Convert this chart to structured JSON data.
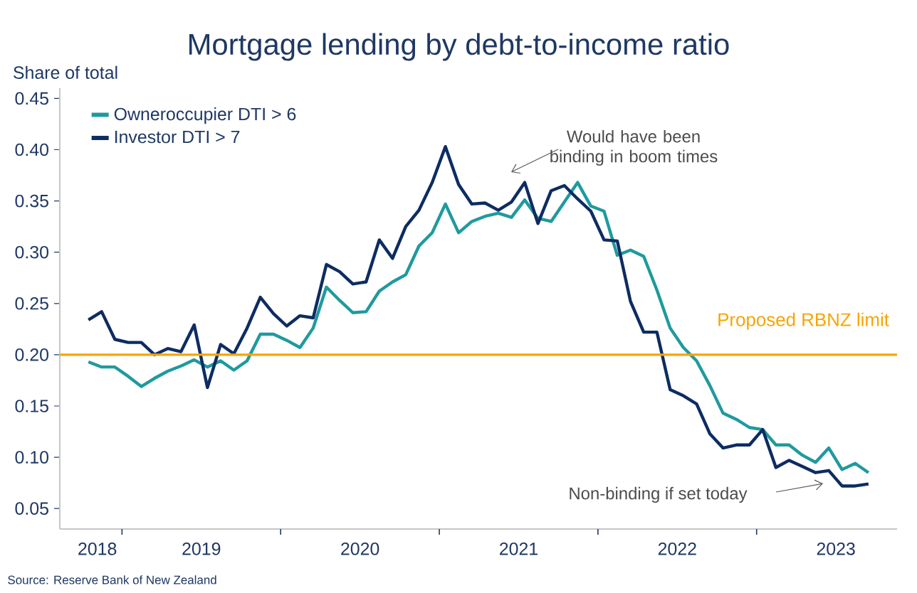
{
  "chart_data": {
    "type": "line",
    "title": "Mortgage lending by debt-to-income ratio",
    "ylabel": "Share of total",
    "x": [
      "2018-10-15",
      "2018-11-15",
      "2018-12-15",
      "2019-01-15",
      "2019-02-15",
      "2019-03-15",
      "2019-04-15",
      "2019-05-15",
      "2019-06-15",
      "2019-07-15",
      "2019-08-15",
      "2019-09-15",
      "2019-10-15",
      "2019-11-15",
      "2019-12-15",
      "2020-01-15",
      "2020-02-15",
      "2020-03-15",
      "2020-04-15",
      "2020-05-15",
      "2020-06-15",
      "2020-07-15",
      "2020-08-15",
      "2020-09-15",
      "2020-10-15",
      "2020-11-15",
      "2020-12-15",
      "2021-01-15",
      "2021-02-15",
      "2021-03-15",
      "2021-04-15",
      "2021-05-15",
      "2021-06-15",
      "2021-07-15",
      "2021-08-15",
      "2021-09-15",
      "2021-10-15",
      "2021-11-15",
      "2021-12-15",
      "2022-01-15",
      "2022-02-15",
      "2022-03-15",
      "2022-04-15",
      "2022-05-15",
      "2022-06-15",
      "2022-07-15",
      "2022-08-15",
      "2022-09-15",
      "2022-10-15",
      "2022-11-15",
      "2022-12-15",
      "2023-01-15",
      "2023-02-15",
      "2023-03-15",
      "2023-04-15",
      "2023-05-15",
      "2023-06-15",
      "2023-07-15",
      "2023-08-15",
      "2023-09-15"
    ],
    "series": [
      {
        "name": "Owneroccupier DTI > 6",
        "color": "#1f9a9e",
        "values": [
          0.193,
          0.188,
          0.188,
          0.179,
          0.169,
          0.177,
          0.184,
          0.189,
          0.195,
          0.188,
          0.194,
          0.185,
          0.194,
          0.22,
          0.22,
          0.214,
          0.207,
          0.226,
          0.266,
          0.253,
          0.241,
          0.242,
          0.262,
          0.271,
          0.278,
          0.306,
          0.319,
          0.347,
          0.319,
          0.33,
          0.335,
          0.338,
          0.334,
          0.351,
          0.333,
          0.33,
          0.349,
          0.368,
          0.345,
          0.34,
          0.297,
          0.302,
          0.296,
          0.263,
          0.226,
          0.207,
          0.194,
          0.17,
          0.143,
          0.137,
          0.129,
          0.127,
          0.112,
          0.112,
          0.102,
          0.095,
          0.109,
          0.088,
          0.094,
          0.085
        ]
      },
      {
        "name": "Investor DTI > 7",
        "color": "#0d2c62",
        "values": [
          0.234,
          0.242,
          0.215,
          0.212,
          0.212,
          0.2,
          0.206,
          0.203,
          0.229,
          0.168,
          0.21,
          0.201,
          0.226,
          0.256,
          0.24,
          0.228,
          0.238,
          0.236,
          0.288,
          0.281,
          0.269,
          0.271,
          0.312,
          0.294,
          0.325,
          0.341,
          0.368,
          0.403,
          0.366,
          0.347,
          0.348,
          0.341,
          0.349,
          0.368,
          0.328,
          0.36,
          0.365,
          0.352,
          0.34,
          0.312,
          0.311,
          0.252,
          0.222,
          0.222,
          0.166,
          0.16,
          0.152,
          0.123,
          0.109,
          0.112,
          0.112,
          0.127,
          0.09,
          0.097,
          0.091,
          0.085,
          0.087,
          0.072,
          0.072,
          0.074
        ]
      }
    ],
    "xlim": [
      "2018-08-10",
      "2023-11-20"
    ],
    "xticks": [
      {
        "value": "2018-11-05",
        "label": "2018"
      },
      {
        "value": "2019-01-01",
        "label": null
      },
      {
        "value": "2019-07-01",
        "label": "2019"
      },
      {
        "value": "2020-01-01",
        "label": null
      },
      {
        "value": "2020-07-01",
        "label": "2020"
      },
      {
        "value": "2021-01-01",
        "label": null
      },
      {
        "value": "2021-07-01",
        "label": "2021"
      },
      {
        "value": "2022-01-01",
        "label": null
      },
      {
        "value": "2022-07-01",
        "label": "2022"
      },
      {
        "value": "2023-01-01",
        "label": null
      },
      {
        "value": "2023-07-01",
        "label": "2023"
      }
    ],
    "ylim": [
      0.03,
      0.46
    ],
    "yticks": [
      {
        "value": 0.05,
        "label": "0.05"
      },
      {
        "value": 0.1,
        "label": "0.10"
      },
      {
        "value": 0.15,
        "label": "0.15"
      },
      {
        "value": 0.2,
        "label": "0.20"
      },
      {
        "value": 0.25,
        "label": "0.25"
      },
      {
        "value": 0.3,
        "label": "0.30"
      },
      {
        "value": 0.35,
        "label": "0.35"
      },
      {
        "value": 0.4,
        "label": "0.40"
      },
      {
        "value": 0.45,
        "label": "0.45"
      }
    ],
    "ref_lines": [
      {
        "axis": "y",
        "value": 0.2,
        "label": "Proposed RBNZ limit",
        "color": "#f7a400"
      }
    ],
    "annotations": [
      "Would have been binding in boom times",
      "Non-binding if set today",
      "Source: Reserve Bank of New Zealand"
    ],
    "legend": "top left"
  }
}
